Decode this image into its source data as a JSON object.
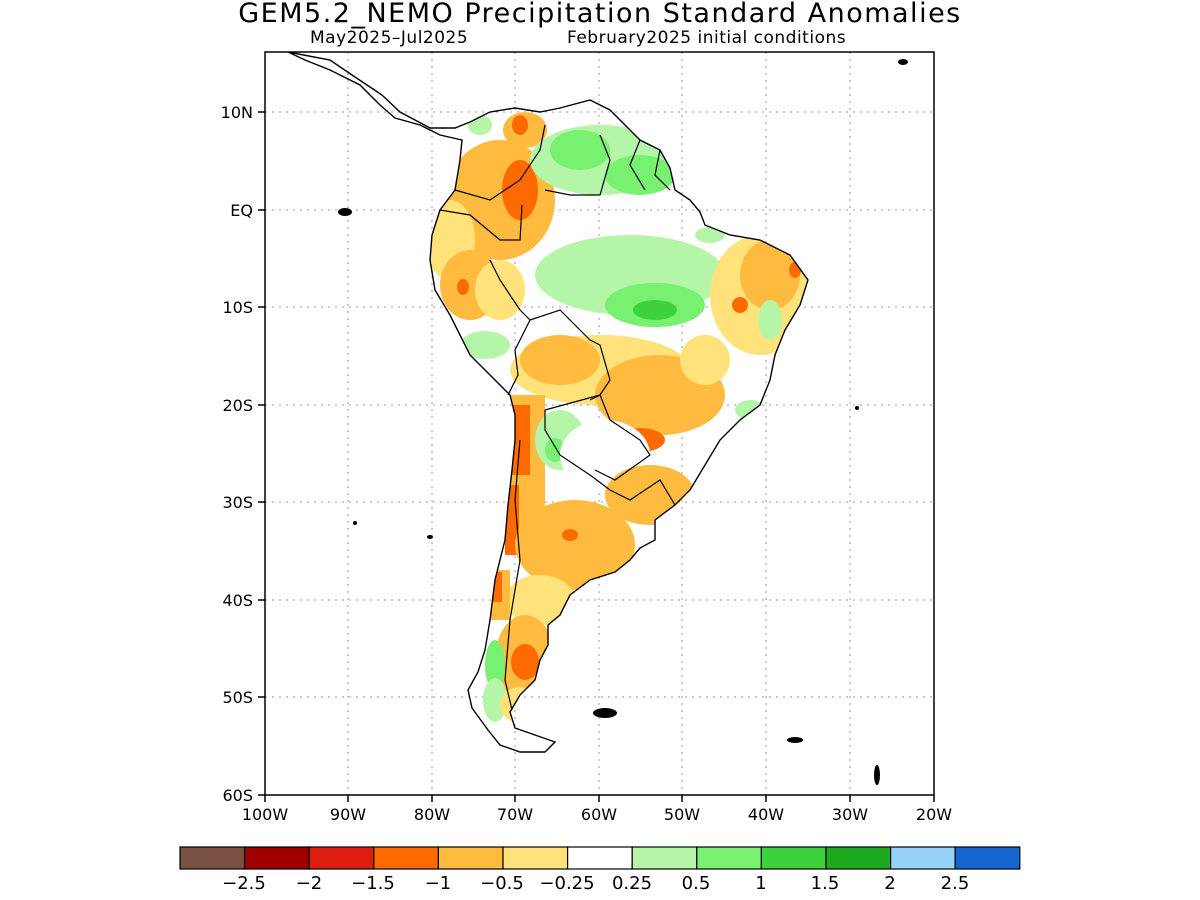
{
  "header": {
    "title": "GEM5.2_NEMO Precipitation Standard Anomalies",
    "period": "May2025–Jul2025",
    "init": "February2025 initial conditions"
  },
  "axes": {
    "lat_labels": [
      "10N",
      "EQ",
      "10S",
      "20S",
      "30S",
      "40S",
      "50S",
      "60S"
    ],
    "lon_labels": [
      "100W",
      "90W",
      "80W",
      "70W",
      "60W",
      "50W",
      "40W",
      "30W",
      "20W"
    ]
  },
  "colorbar": {
    "colors": [
      "#7a5040",
      "#a00000",
      "#e01e10",
      "#ff6a00",
      "#ffbb40",
      "#ffe27a",
      "#ffffff",
      "#b4f5a8",
      "#78f070",
      "#3cd23c",
      "#1eaa1e",
      "#96d2fa",
      "#1464d2"
    ],
    "labels": [
      "−2.5",
      "−2",
      "−1.5",
      "−1",
      "−0.5",
      "−0.25",
      "0.25",
      "0.5",
      "1",
      "1.5",
      "2",
      "2.5"
    ]
  }
}
